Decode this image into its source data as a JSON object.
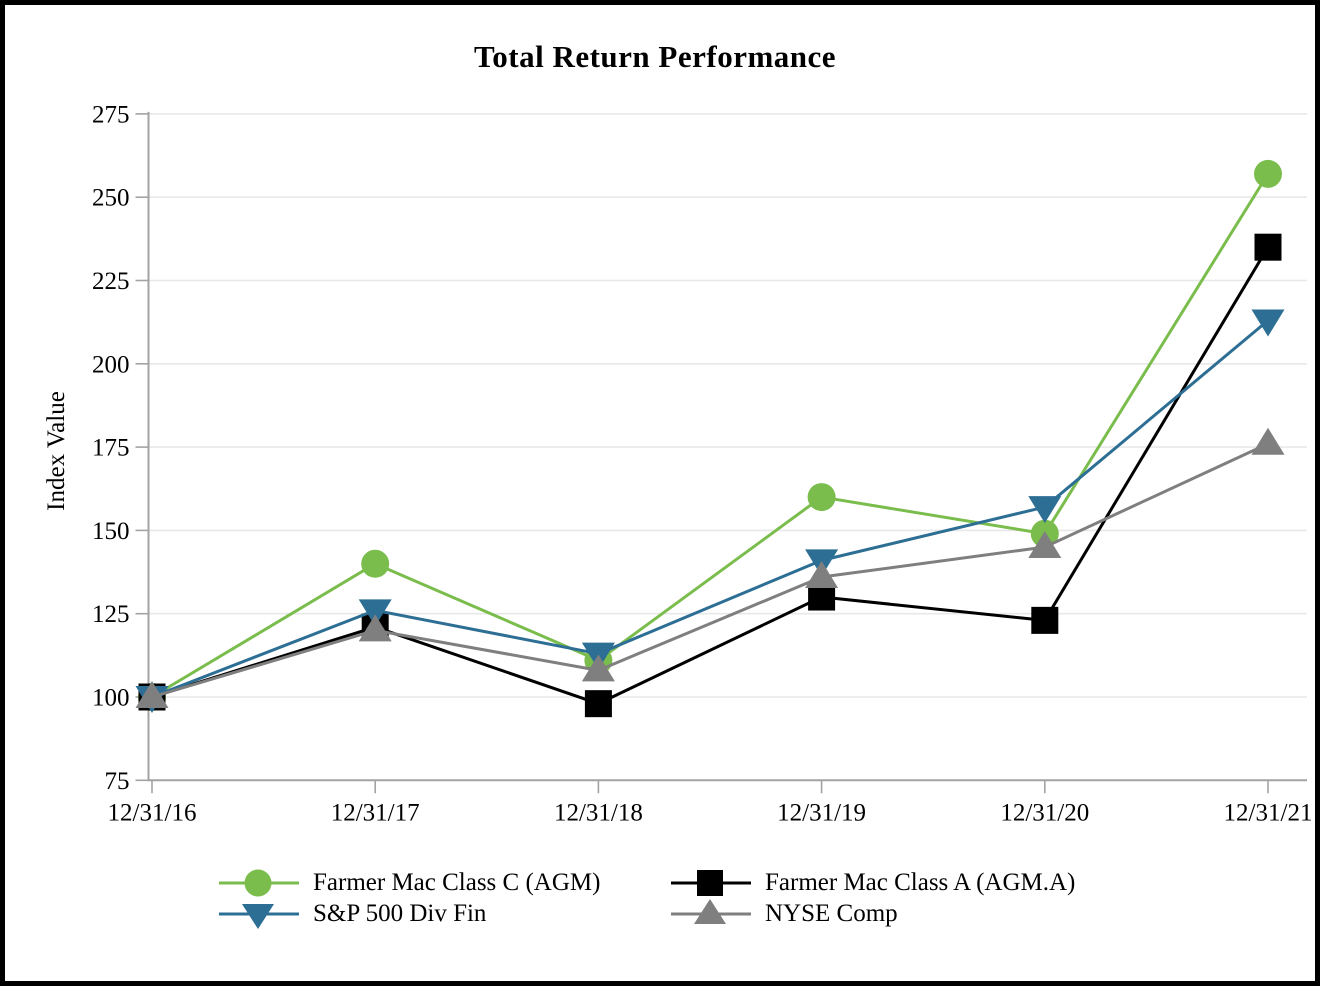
{
  "chart_data": {
    "type": "line",
    "title": "Total Return Performance",
    "xlabel": "",
    "ylabel": "Index Value",
    "categories": [
      "12/31/16",
      "12/31/17",
      "12/31/18",
      "12/31/19",
      "12/31/20",
      "12/31/21"
    ],
    "yticks": [
      75,
      100,
      125,
      150,
      175,
      200,
      225,
      250,
      275
    ],
    "ylim": [
      75,
      275
    ],
    "grid": "horizontal",
    "legend_position": "bottom",
    "series": [
      {
        "name": "Farmer Mac Class C (AGM)",
        "color": "#7ABD4C",
        "marker": "circle",
        "values": [
          100,
          140,
          111,
          160,
          149,
          257
        ]
      },
      {
        "name": "Farmer Mac Class A (AGM.A)",
        "color": "#000000",
        "marker": "square",
        "values": [
          100,
          121,
          98,
          130,
          123,
          235
        ]
      },
      {
        "name": "S&P 500 Div Fin",
        "color": "#2D6E94",
        "marker": "triangle-down",
        "values": [
          100,
          126,
          113,
          141,
          157,
          213
        ]
      },
      {
        "name": "NYSE Comp",
        "color": "#7F7F7F",
        "marker": "triangle-up",
        "values": [
          100,
          120,
          108,
          136,
          145,
          176
        ]
      }
    ],
    "colors": {
      "grid": "#E8E8E8",
      "axis": "#A3A3A3",
      "text": "#000000"
    }
  }
}
